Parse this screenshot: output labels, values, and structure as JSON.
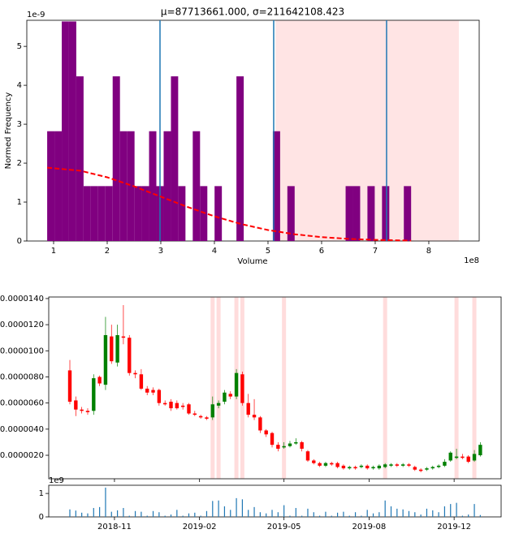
{
  "chart_data": [
    {
      "type": "histogram",
      "title": "μ=87713661.000, σ=211642108.423",
      "x_label": "Volume",
      "y_label": "Normed Frequency",
      "x_offset_label": "1e8",
      "y_offset_label": "1e-9",
      "color": "#800080",
      "bins": [
        0.88,
        1.016,
        1.152,
        1.287,
        1.423,
        1.559,
        1.695,
        1.831,
        1.966,
        2.102,
        2.238,
        2.374,
        2.51,
        2.645,
        2.781,
        2.917,
        3.053,
        3.189,
        3.324,
        3.46,
        3.596,
        3.732,
        3.868,
        4.003,
        4.139,
        4.275,
        4.411,
        4.547,
        4.682,
        4.818,
        4.954,
        5.09,
        5.226,
        5.361,
        5.497,
        5.633,
        5.769,
        5.905,
        6.04,
        6.176,
        6.312,
        6.448,
        6.584,
        6.719,
        6.855,
        6.991,
        7.127,
        7.263,
        7.398,
        7.534,
        7.67
      ],
      "values": [
        2.82,
        2.82,
        5.64,
        5.64,
        4.23,
        1.41,
        1.41,
        1.41,
        1.41,
        4.23,
        2.82,
        2.82,
        1.41,
        1.41,
        2.82,
        1.41,
        2.82,
        4.23,
        1.41,
        0,
        2.82,
        1.41,
        0,
        1.41,
        0,
        0,
        4.23,
        0,
        0,
        0,
        0,
        2.82,
        0,
        1.41,
        0,
        0,
        0,
        0,
        0,
        0,
        0,
        1.41,
        1.41,
        0,
        1.41,
        0,
        1.41,
        0,
        0,
        1.41
      ],
      "curve": {
        "color": "#ff0000",
        "x": [
          0.88,
          1.5,
          2,
          2.5,
          3,
          3.5,
          4,
          4.5,
          5,
          5.5,
          6,
          6.5,
          7,
          7.67
        ],
        "values": [
          1.885,
          1.805,
          1.637,
          1.405,
          1.139,
          0.874,
          0.634,
          0.435,
          0.282,
          0.173,
          0.1,
          0.055,
          0.029,
          0.011
        ]
      },
      "vlines": [
        2.985,
        5.106,
        7.212
      ],
      "vline_color": "#1f77b4",
      "span": [
        5.14,
        8.56
      ],
      "span_color": "#ffe4e4",
      "xlim": [
        0.5,
        8.94
      ],
      "ylim": [
        0,
        5.67
      ],
      "xticks": [
        1,
        2,
        3,
        4,
        5,
        6,
        7,
        8
      ],
      "yticks": [
        0,
        1,
        2,
        3,
        4,
        5
      ]
    },
    {
      "type": "candlestick",
      "up_color": "#008000",
      "down_color": "#ff0000",
      "open": [
        8.5e-06,
        6.2e-06,
        5.5e-06,
        5.4e-06,
        5.4e-06,
        8e-06,
        7.4e-06,
        1.11e-05,
        9.1e-06,
        1.11e-05,
        1.1e-05,
        8.3e-06,
        8.2e-06,
        7.1e-06,
        7e-06,
        7e-06,
        6e-06,
        6.1e-06,
        6e-06,
        5.8e-06,
        5.9e-06,
        5.2e-06,
        5e-06,
        4.9e-06,
        4.9e-06,
        5.8e-06,
        6.1e-06,
        6.7e-06,
        6.5e-06,
        8.2e-06,
        6e-06,
        5.1e-06,
        4.9e-06,
        3.9e-06,
        3.7e-06,
        2.8e-06,
        2.6e-06,
        2.7e-06,
        2.9e-06,
        3e-06,
        2.3e-06,
        1.6e-06,
        1.4e-06,
        1.2e-06,
        1.4e-06,
        1.4e-06,
        1.2e-06,
        1e-06,
        1.1e-06,
        1.1e-06,
        1.2e-06,
        1e-06,
        1e-06,
        1.1e-06,
        1.2e-06,
        1.3e-06,
        1.2e-06,
        1.3e-06,
        1.1e-06,
        9e-07,
        9e-07,
        1e-06,
        1.1e-06,
        1.2e-06,
        1.6e-06,
        1.8e-06,
        1.9e-06,
        1.9e-06,
        1.6e-06,
        2e-06
      ],
      "high": [
        9.3e-06,
        6.5e-06,
        5.7e-06,
        5.6e-06,
        8.2e-06,
        8.1e-06,
        1.26e-05,
        1.2e-05,
        1.2e-05,
        1.35e-05,
        1.12e-05,
        8.5e-06,
        8.6e-06,
        7.3e-06,
        7.2e-06,
        7.1e-06,
        6.2e-06,
        6.3e-06,
        6.2e-06,
        6e-06,
        6e-06,
        5.4e-06,
        5.1e-06,
        5e-06,
        6.5e-06,
        6.2e-06,
        7e-06,
        6.9e-06,
        8.6e-06,
        8.4e-06,
        6.7e-06,
        6.3e-06,
        5e-06,
        4e-06,
        3.8e-06,
        3e-06,
        3e-06,
        3.1e-06,
        3.3e-06,
        3.1e-06,
        2.4e-06,
        1.7e-06,
        1.5e-06,
        1.5e-06,
        1.5e-06,
        1.5e-06,
        1.3e-06,
        1.2e-06,
        1.2e-06,
        1.3e-06,
        1.3e-06,
        1.2e-06,
        1.3e-06,
        1.4e-06,
        1.4e-06,
        1.4e-06,
        1.4e-06,
        1.4e-06,
        1.2e-06,
        1e-06,
        1.1e-06,
        1.2e-06,
        1.3e-06,
        1.7e-06,
        2.3e-06,
        2.5e-06,
        2.1e-06,
        2e-06,
        2.4e-06,
        3e-06
      ],
      "low": [
        5.9e-06,
        5e-06,
        5.2e-06,
        5.1e-06,
        5.1e-06,
        7.3e-06,
        7e-06,
        9e-06,
        8.8e-06,
        1.05e-05,
        8.1e-06,
        7.9e-06,
        7e-06,
        6.6e-06,
        6.6e-06,
        5.8e-06,
        5.8e-06,
        5.4e-06,
        5.5e-06,
        5.5e-06,
        5.1e-06,
        5e-06,
        4.8e-06,
        4.7e-06,
        4.7e-06,
        5.6e-06,
        5.9e-06,
        6.3e-06,
        6.3e-06,
        5.8e-06,
        4.9e-06,
        4.7e-06,
        3.7e-06,
        3.4e-06,
        2.6e-06,
        2.3e-06,
        2.5e-06,
        2.6e-06,
        2.8e-06,
        2.3e-06,
        1.5e-06,
        1.3e-06,
        1.1e-06,
        1.1e-06,
        1.2e-06,
        1e-06,
        9e-07,
        9e-07,
        9e-07,
        1e-06,
        9e-07,
        9e-07,
        9e-07,
        1e-06,
        1.1e-06,
        1.1e-06,
        1.1e-06,
        1.1e-06,
        8e-07,
        7e-07,
        8e-07,
        9e-07,
        1e-06,
        1.1e-06,
        1.5e-06,
        1.7e-06,
        1.7e-06,
        1.4e-06,
        1.5e-06,
        1.9e-06
      ],
      "close": [
        6.1e-06,
        5.5e-06,
        5.4e-06,
        5.3e-06,
        7.9e-06,
        7.5e-06,
        1.12e-05,
        9.2e-06,
        1.12e-05,
        1.1e-05,
        8.3e-06,
        8.2e-06,
        7.1e-06,
        6.8e-06,
        6.8e-06,
        6e-06,
        5.9e-06,
        5.6e-06,
        5.6e-06,
        5.7e-06,
        5.2e-06,
        5.1e-06,
        4.9e-06,
        4.8e-06,
        5.9e-06,
        6e-06,
        6.8e-06,
        6.5e-06,
        8.3e-06,
        6e-06,
        5.1e-06,
        4.9e-06,
        3.9e-06,
        3.6e-06,
        2.8e-06,
        2.5e-06,
        2.7e-06,
        2.9e-06,
        3e-06,
        2.5e-06,
        1.6e-06,
        1.4e-06,
        1.2e-06,
        1.4e-06,
        1.3e-06,
        1.1e-06,
        1e-06,
        1.1e-06,
        1e-06,
        1.2e-06,
        1e-06,
        1.1e-06,
        1.2e-06,
        1.3e-06,
        1.3e-06,
        1.2e-06,
        1.3e-06,
        1.2e-06,
        9e-07,
        8e-07,
        1e-06,
        1.1e-06,
        1.2e-06,
        1.5e-06,
        2.2e-06,
        1.9e-06,
        1.8e-06,
        1.5e-06,
        2.1e-06,
        2.8e-06
      ],
      "highlight_x": [
        24,
        25,
        28,
        29,
        36,
        53,
        65,
        68
      ],
      "highlight_color": "#ffdcdc",
      "xlim": [
        -3.55,
        72.5
      ],
      "ylim": [
        2e-07,
        1.412e-05
      ],
      "yticks": [
        {
          "value": 2e-06,
          "label": "0.0000020"
        },
        {
          "value": 4e-06,
          "label": "0.0000040"
        },
        {
          "value": 6e-06,
          "label": "0.0000060"
        },
        {
          "value": 8e-06,
          "label": "0.0000080"
        },
        {
          "value": 1e-05,
          "label": "0.0000100"
        },
        {
          "value": 1.2e-05,
          "label": "0.0000120"
        },
        {
          "value": 1.4e-05,
          "label": "0.0000140"
        }
      ]
    },
    {
      "type": "bar",
      "color": "#1f77b4",
      "y_offset_label": "1e9",
      "values": [
        0.32,
        0.27,
        0.18,
        0.15,
        0.38,
        0.42,
        1.25,
        0.22,
        0.28,
        0.38,
        0.05,
        0.25,
        0.22,
        0.05,
        0.25,
        0.2,
        0.05,
        0.1,
        0.3,
        0.05,
        0.15,
        0.18,
        0.05,
        0.25,
        0.68,
        0.7,
        0.45,
        0.3,
        0.8,
        0.75,
        0.3,
        0.42,
        0.2,
        0.15,
        0.3,
        0.2,
        0.5,
        0.05,
        0.38,
        0.05,
        0.35,
        0.2,
        0.05,
        0.22,
        0.05,
        0.18,
        0.22,
        0.05,
        0.2,
        0.05,
        0.3,
        0.15,
        0.2,
        0.7,
        0.45,
        0.35,
        0.32,
        0.25,
        0.2,
        0.1,
        0.35,
        0.28,
        0.2,
        0.45,
        0.55,
        0.6,
        0.05,
        0.1,
        0.55,
        0.08
      ],
      "xlim": [
        -3.55,
        72.5
      ],
      "ylim": [
        0,
        1.35
      ],
      "xticks": [
        {
          "value": 7.5,
          "label": "2018-11"
        },
        {
          "value": 21.8,
          "label": "2019-02"
        },
        {
          "value": 36.0,
          "label": "2019-05"
        },
        {
          "value": 50.3,
          "label": "2019-08"
        },
        {
          "value": 64.6,
          "label": "2019-12"
        }
      ],
      "yticks": [
        0,
        1
      ]
    }
  ]
}
